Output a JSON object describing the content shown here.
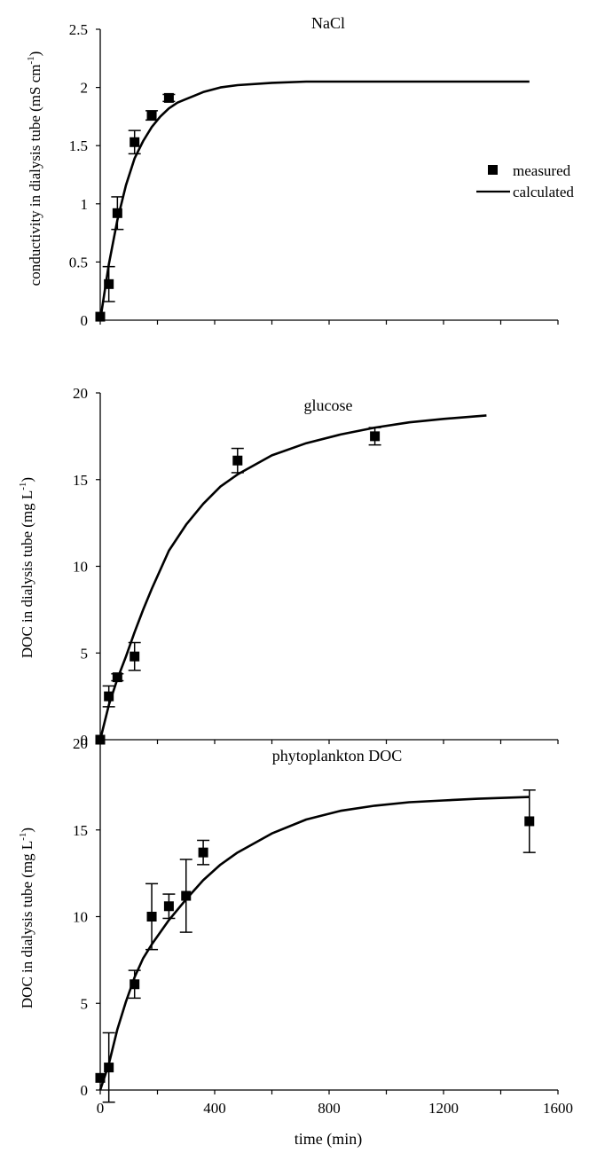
{
  "chart_data": [
    {
      "type": "scatter",
      "title": "NaCl",
      "ylabel": "conductivity in dialysis tube (mS cm",
      "ylabel_sup": "-1",
      "ylabel_end": ")",
      "xlabel": "",
      "xlim": [
        0,
        1600
      ],
      "ylim": [
        0,
        2.5
      ],
      "x_ticks": [
        0,
        200,
        400,
        600,
        800,
        1000,
        1200,
        1400,
        1600
      ],
      "x_tick_labels": [],
      "y_ticks": [
        "0",
        "0.5",
        "1",
        "1.5",
        "2",
        "2.5"
      ],
      "grid": false,
      "legend": {
        "position": "right",
        "entries": [
          {
            "label": "measured",
            "marker": "square"
          },
          {
            "label": "calculated",
            "marker": "line"
          }
        ]
      },
      "series": [
        {
          "name": "measured",
          "x": [
            0,
            30,
            60,
            120,
            180,
            240
          ],
          "y": [
            0.03,
            0.31,
            0.92,
            1.53,
            1.76,
            1.91
          ],
          "err": [
            0.0,
            0.15,
            0.14,
            0.1,
            0.04,
            0.03
          ]
        },
        {
          "name": "calculated",
          "x": [
            0,
            30,
            60,
            90,
            120,
            150,
            180,
            210,
            240,
            270,
            300,
            330,
            360,
            420,
            480,
            600,
            720,
            900,
            1200,
            1500
          ],
          "y": [
            0,
            0.48,
            0.86,
            1.16,
            1.39,
            1.54,
            1.66,
            1.75,
            1.82,
            1.87,
            1.9,
            1.93,
            1.96,
            2.0,
            2.02,
            2.04,
            2.05,
            2.05,
            2.05,
            2.05
          ]
        }
      ]
    },
    {
      "type": "scatter",
      "title": "glucose",
      "ylabel": "DOC in dialysis tube (mg L",
      "ylabel_sup": "-1",
      "ylabel_end": ")",
      "xlabel": "",
      "xlim": [
        0,
        1600
      ],
      "ylim": [
        0,
        20
      ],
      "x_ticks": [
        0,
        200,
        400,
        600,
        800,
        1000,
        1200,
        1400,
        1600
      ],
      "x_tick_labels": [],
      "y_ticks": [
        "0",
        "5",
        "10",
        "15",
        "20"
      ],
      "grid": false,
      "series": [
        {
          "name": "measured",
          "x": [
            0,
            30,
            60,
            120,
            480,
            960
          ],
          "y": [
            0.0,
            2.5,
            3.6,
            4.8,
            16.1,
            17.5
          ],
          "err": [
            0.0,
            0.6,
            0.2,
            0.8,
            0.7,
            0.5
          ]
        },
        {
          "name": "calculated",
          "x": [
            0,
            30,
            60,
            90,
            120,
            150,
            180,
            240,
            300,
            360,
            420,
            480,
            600,
            720,
            840,
            960,
            1080,
            1200,
            1350
          ],
          "y": [
            0,
            2.0,
            3.5,
            4.8,
            6.2,
            7.5,
            8.7,
            10.9,
            12.4,
            13.6,
            14.6,
            15.3,
            16.4,
            17.1,
            17.6,
            18.0,
            18.3,
            18.5,
            18.7
          ]
        }
      ]
    },
    {
      "type": "scatter",
      "title": "phytoplankton DOC",
      "ylabel": "DOC in dialysis tube (mg L",
      "ylabel_sup": "-1",
      "ylabel_end": ")",
      "xlabel": "time (min)",
      "xlim": [
        0,
        1600
      ],
      "ylim": [
        0,
        20
      ],
      "x_ticks": [
        0,
        200,
        400,
        600,
        800,
        1000,
        1200,
        1400,
        1600
      ],
      "x_tick_labels": [
        "0",
        "400",
        "800",
        "1200",
        "1600"
      ],
      "y_ticks": [
        "0",
        "5",
        "10",
        "15",
        "20"
      ],
      "grid": false,
      "series": [
        {
          "name": "measured",
          "x": [
            0,
            30,
            120,
            180,
            240,
            300,
            360,
            1500
          ],
          "y": [
            0.7,
            1.3,
            6.1,
            10.0,
            10.6,
            11.2,
            13.7,
            15.5
          ],
          "err": [
            0.0,
            2.0,
            0.8,
            1.9,
            0.7,
            2.1,
            0.7,
            1.8
          ]
        },
        {
          "name": "calculated",
          "x": [
            0,
            30,
            60,
            90,
            120,
            150,
            180,
            210,
            240,
            300,
            360,
            420,
            480,
            600,
            720,
            840,
            960,
            1080,
            1200,
            1320,
            1500
          ],
          "y": [
            0,
            1.5,
            3.5,
            5.1,
            6.5,
            7.6,
            8.4,
            9.1,
            9.8,
            11.0,
            12.1,
            13.0,
            13.7,
            14.8,
            15.6,
            16.1,
            16.4,
            16.6,
            16.7,
            16.8,
            16.9
          ]
        }
      ]
    }
  ]
}
